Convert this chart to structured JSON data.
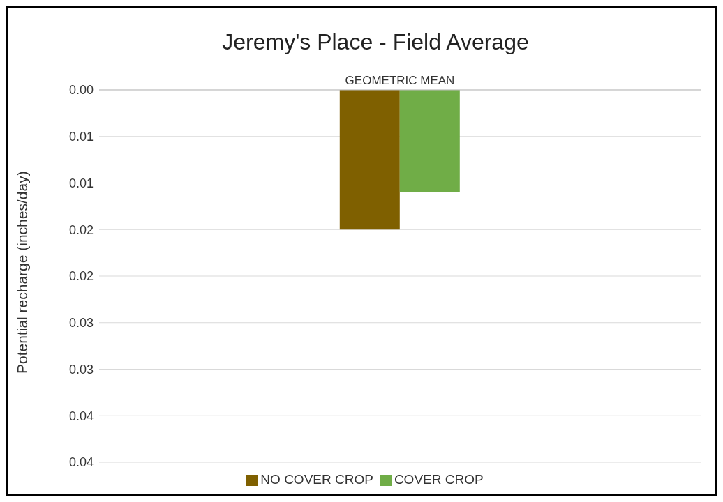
{
  "chart_data": {
    "type": "bar",
    "title": "Jeremy's Place  - Field Average",
    "ylabel": "Potential recharge (inches/day)",
    "categories": [
      "GEOMETRIC MEAN"
    ],
    "series": [
      {
        "name": "NO COVER CROP",
        "color": "#7f6000",
        "values": [
          0.015
        ]
      },
      {
        "name": "COVER CROP",
        "color": "#70ad47",
        "values": [
          0.011
        ]
      }
    ],
    "ylim": [
      0.04,
      0
    ],
    "yticks": [
      {
        "value": 0,
        "label": "0.00"
      },
      {
        "value": 0.005,
        "label": "0.01"
      },
      {
        "value": 0.01,
        "label": "0.01"
      },
      {
        "value": 0.015,
        "label": "0.02"
      },
      {
        "value": 0.02,
        "label": "0.02"
      },
      {
        "value": 0.025,
        "label": "0.03"
      },
      {
        "value": 0.03,
        "label": "0.03"
      },
      {
        "value": 0.035,
        "label": "0.04"
      },
      {
        "value": 0.04,
        "label": "0.04"
      }
    ],
    "grid": "y",
    "legend": "bottom"
  }
}
